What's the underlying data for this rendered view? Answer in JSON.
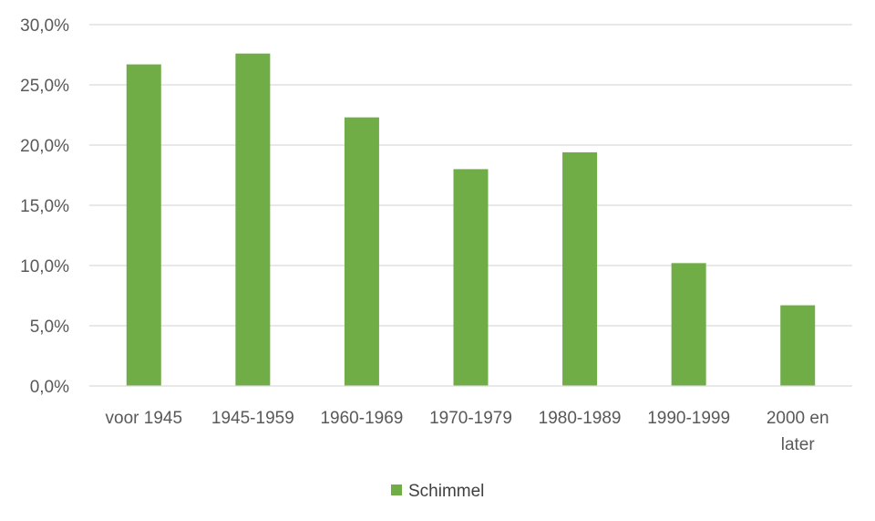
{
  "chart_data": {
    "type": "bar",
    "categories": [
      [
        "voor 1945"
      ],
      [
        "1945-1959"
      ],
      [
        "1960-1969"
      ],
      [
        "1970-1979"
      ],
      [
        "1980-1989"
      ],
      [
        "1990-1999"
      ],
      [
        "2000 en",
        "later"
      ]
    ],
    "series": [
      {
        "name": "Schimmel",
        "color": "#70ad47",
        "values": [
          26.7,
          27.6,
          22.3,
          18.0,
          19.4,
          10.2,
          6.7
        ]
      }
    ],
    "ylim": [
      0,
      30
    ],
    "yticks": [
      0,
      5,
      10,
      15,
      20,
      25,
      30
    ],
    "ytick_labels": [
      "0,0%",
      "5,0%",
      "10,0%",
      "15,0%",
      "20,0%",
      "25,0%",
      "30,0%"
    ],
    "grid": true,
    "gridline_color": "#d9d9d9",
    "legend_position": "bottom",
    "title": "",
    "xlabel": "",
    "ylabel": ""
  }
}
